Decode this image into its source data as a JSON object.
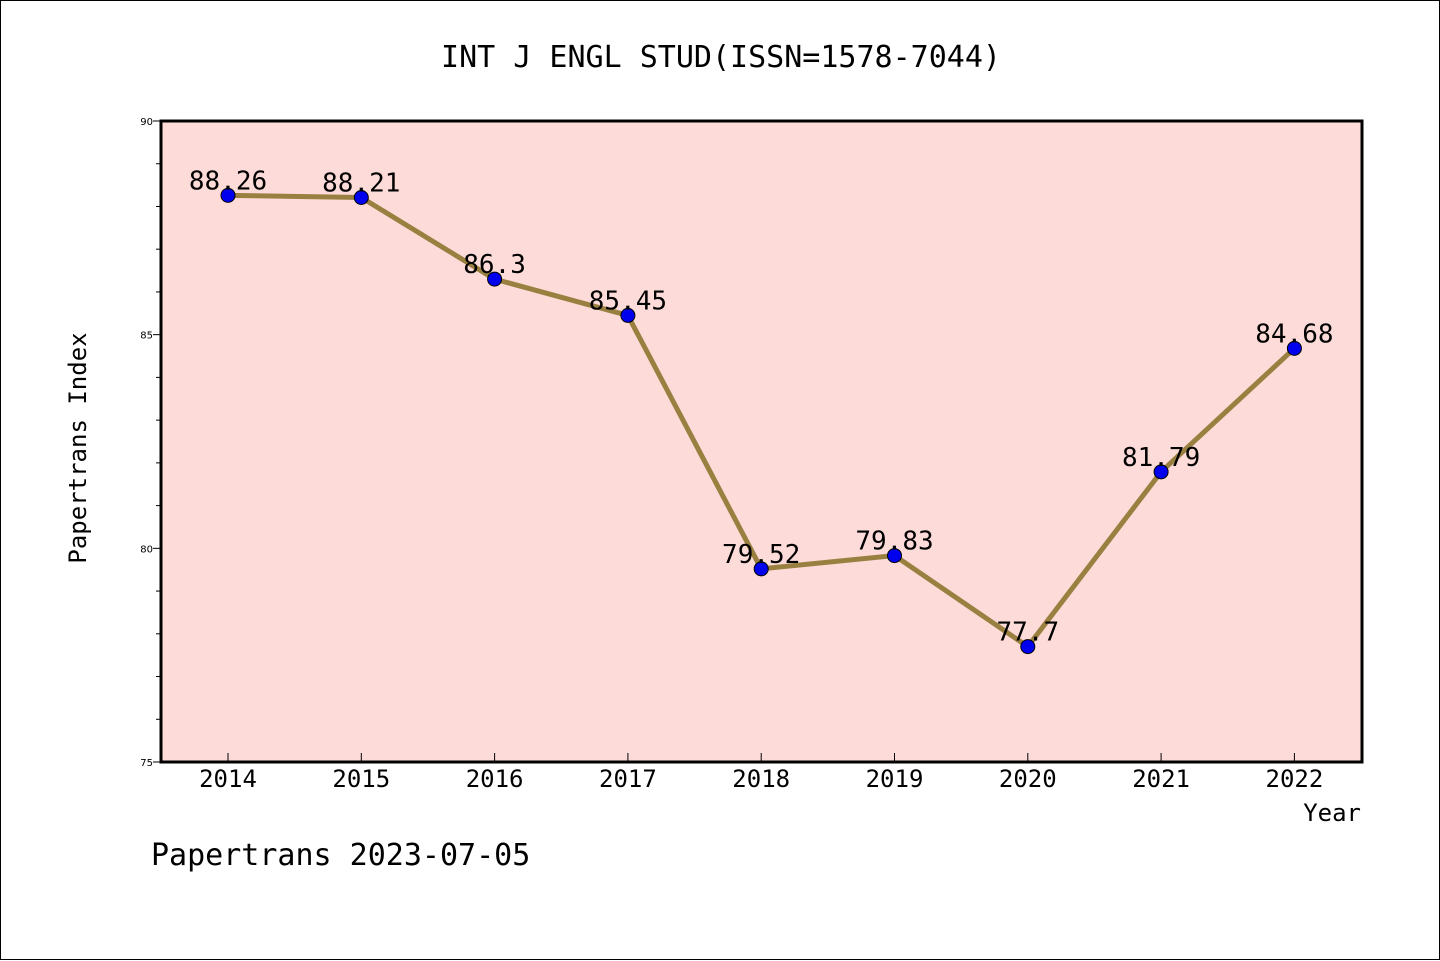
{
  "chart_data": {
    "type": "line",
    "title": "INT J ENGL STUD(ISSN=1578-7044)",
    "xlabel": "Year",
    "ylabel": "Papertrans Index",
    "categories": [
      "2014",
      "2015",
      "2016",
      "2017",
      "2018",
      "2019",
      "2020",
      "2021",
      "2022"
    ],
    "values": [
      88.26,
      88.21,
      86.3,
      85.45,
      79.52,
      79.83,
      77.7,
      81.79,
      84.68
    ],
    "data_labels": [
      "88.26",
      "88.21",
      "86.3",
      "85.45",
      "79.52",
      "79.83",
      "77.7",
      "81.79",
      "84.68"
    ],
    "ylim": [
      75,
      90
    ],
    "yticks": [
      75,
      80,
      85,
      90
    ],
    "grid": false,
    "colors": {
      "plot_background": "#fddbd8",
      "line": "#9a8040",
      "marker": "#0000ee"
    }
  },
  "footer": "Papertrans 2023-07-05"
}
